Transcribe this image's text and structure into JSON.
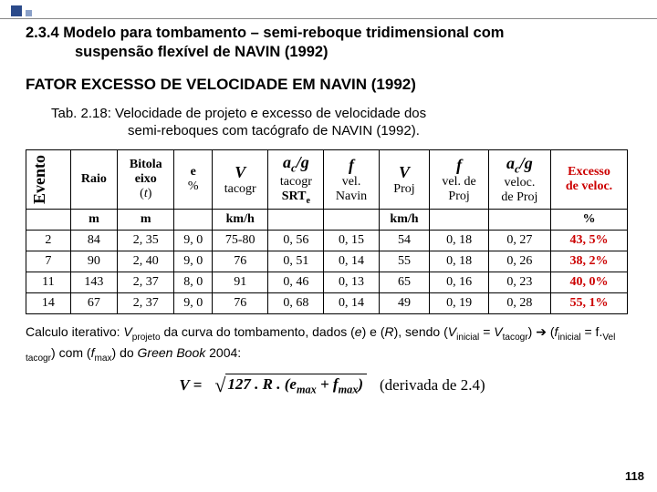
{
  "page": {
    "title_line1": "2.3.4 Modelo para tombamento – semi-reboque tridimensional com",
    "title_line2": "suspensão flexível de NAVIN (1992)",
    "heading2": "FATOR EXCESSO DE VELOCIDADE EM NAVIN (1992)",
    "caption_line1": "Tab. 2.18: Velocidade de projeto e excesso de velocidade dos",
    "caption_line2": "semi-reboques com tacógrafo de NAVIN (1992).",
    "footnote_html": "Calculo iterativo: <i>V</i><sub>projeto</sub> da curva do tombamento, dados (<i>e</i>) e (<i>R</i>), sendo (<i>V</i><sub>inicial</sub> = <i>V</i><sub>tacogr</sub>) ➔ (<i>f</i><sub>inicial</sub> = f.<sub>Vel tacogr</sub>) com (<i>f</i><sub>max</sub>) do <i>Green Book</i> 2004:",
    "formula_lhs": "V =",
    "formula_rhs": "127 . R . (e<sub>max</sub> + f<sub>max</sub>)",
    "formula_note": "(derivada de 2.4)",
    "pagenum": "118"
  },
  "table": {
    "h_evento": "Evento",
    "h_raio": "Raio",
    "h_bitola_l1": "Bitola",
    "h_bitola_l2": "eixo",
    "h_bitola_l3": "(t)",
    "h_e_l1": "e",
    "h_e_l2": "%",
    "h_v1": "V",
    "h_v1_sub": "tacogr",
    "h_acg1": "a_c/g",
    "h_acg1_s1": "tacogr",
    "h_acg1_s2": "SRT_e",
    "h_f1": "f",
    "h_f1_s1": "vel.",
    "h_f1_s2": "Navin",
    "h_v2": "V",
    "h_v2_sub": "Proj",
    "h_f2": "f",
    "h_f2_s1": "vel. de",
    "h_f2_s2": "Proj",
    "h_acg2": "a_c/g",
    "h_acg2_s1": "veloc.",
    "h_acg2_s2": "de Proj",
    "h_exc_l1": "Excesso",
    "h_exc_l2": "de veloc.",
    "unit_m": "m",
    "unit_kmh": "km/h",
    "unit_pct": "%",
    "rows": [
      {
        "ev": "2",
        "raio": "84",
        "bit": "2, 35",
        "e": "9, 0",
        "vt": "75-80",
        "acg1": "0, 56",
        "f1": "0, 15",
        "vp": "54",
        "f2": "0, 18",
        "acg2": "0, 27",
        "exc": "43, 5%"
      },
      {
        "ev": "7",
        "raio": "90",
        "bit": "2, 40",
        "e": "9, 0",
        "vt": "76",
        "acg1": "0, 51",
        "f1": "0, 14",
        "vp": "55",
        "f2": "0, 18",
        "acg2": "0, 26",
        "exc": "38, 2%"
      },
      {
        "ev": "11",
        "raio": "143",
        "bit": "2, 37",
        "e": "8, 0",
        "vt": "91",
        "acg1": "0, 46",
        "f1": "0, 13",
        "vp": "65",
        "f2": "0, 16",
        "acg2": "0, 23",
        "exc": "40, 0%"
      },
      {
        "ev": "14",
        "raio": "67",
        "bit": "2, 37",
        "e": "9, 0",
        "vt": "76",
        "acg1": "0, 68",
        "f1": "0, 14",
        "vp": "49",
        "f2": "0, 19",
        "acg2": "0, 28",
        "exc": "55, 1%"
      }
    ]
  }
}
